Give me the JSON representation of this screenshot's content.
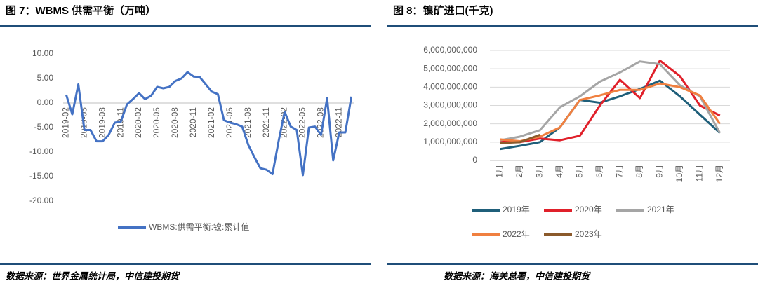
{
  "chart_data": [
    {
      "type": "line",
      "title": "图 7：WBMS 供需平衡（万吨）",
      "source": "数据来源：世界金属统计局，中信建投期货",
      "categories": [
        "2019-02",
        null,
        null,
        "2019-05",
        null,
        null,
        "2019-08",
        null,
        null,
        "2019-11",
        null,
        null,
        "2020-02",
        null,
        null,
        "2020-05",
        null,
        null,
        "2020-08",
        null,
        null,
        "2020-11",
        null,
        null,
        "2021-02",
        null,
        null,
        "2021-05",
        null,
        null,
        "2021-08",
        null,
        null,
        "2021-11",
        null,
        null,
        "2022-02",
        null,
        null,
        "2022-05",
        null,
        null,
        "2022-08",
        null,
        null,
        "2022-11",
        null,
        null
      ],
      "series": [
        {
          "name": "WBMS:供需平衡:镍:累计值",
          "color": "#4472c4",
          "values": [
            1.7,
            -2.3,
            3.8,
            -5.5,
            -5.5,
            -7.8,
            -7.8,
            -6.5,
            -4.0,
            -3.8,
            -0.3,
            0.8,
            2.0,
            0.8,
            1.5,
            3.3,
            3.0,
            3.3,
            4.5,
            5.0,
            6.3,
            5.4,
            5.3,
            3.8,
            2.3,
            1.8,
            -3.5,
            -4.0,
            -4.3,
            -4.8,
            -8.5,
            -11.0,
            -13.3,
            -13.6,
            -14.5,
            -7.8,
            -1.8,
            -4.8,
            -5.5,
            -14.7,
            -5.0,
            -4.8,
            -6.5,
            1.0,
            -11.7,
            -6.0,
            -6.0,
            1.3
          ]
        }
      ],
      "ylim": [
        -20,
        10
      ],
      "yticks": [
        {
          "value": 10,
          "label": "10.00"
        },
        {
          "value": 5,
          "label": "5.00"
        },
        {
          "value": 0,
          "label": "0.00"
        },
        {
          "value": -5,
          "label": "-5.00"
        },
        {
          "value": -10,
          "label": "-10.00"
        },
        {
          "value": -15,
          "label": "-15.00"
        },
        {
          "value": -20,
          "label": "-20.00"
        }
      ],
      "grid": false,
      "legend": "bottom"
    },
    {
      "type": "line",
      "title": "图 8：镍矿进口(千克)",
      "source": "数据来源：海关总署，中信建投期货",
      "categories": [
        "1月",
        "2月",
        "3月",
        "4月",
        "5月",
        "6月",
        "7月",
        "8月",
        "9月",
        "10月",
        "11月",
        "12月"
      ],
      "series": [
        {
          "name": "2019年",
          "color": "#1f5f7a",
          "values": [
            620000000,
            800000000,
            1000000000,
            1800000000,
            3300000000,
            3150000000,
            3500000000,
            3900000000,
            4350000000,
            3500000000,
            2500000000,
            1500000000
          ]
        },
        {
          "name": "2020年",
          "color": "#e0202a",
          "values": [
            1050000000,
            1000000000,
            1200000000,
            1100000000,
            1350000000,
            3000000000,
            4400000000,
            3400000000,
            5450000000,
            4600000000,
            3000000000,
            2450000000
          ]
        },
        {
          "name": "2021年",
          "color": "#a5a5a5",
          "values": [
            1100000000,
            1300000000,
            1650000000,
            2900000000,
            3500000000,
            4300000000,
            4800000000,
            5400000000,
            5250000000,
            4100000000,
            3500000000,
            1500000000
          ]
        },
        {
          "name": "2022年",
          "color": "#f08040",
          "values": [
            1150000000,
            1050000000,
            1300000000,
            1800000000,
            3300000000,
            3550000000,
            3850000000,
            3850000000,
            4200000000,
            4000000000,
            3550000000,
            2000000000
          ]
        },
        {
          "name": "2023年",
          "color": "#8b5a2b",
          "values": [
            950000000,
            1000000000,
            1400000000,
            null,
            null,
            null,
            null,
            null,
            null,
            null,
            null,
            null
          ]
        }
      ],
      "ylim": [
        0,
        6000000000
      ],
      "yticks": [
        0,
        {
          "value": 1000000000,
          "label": "1,000,000,000"
        },
        {
          "value": 2000000000,
          "label": "2,000,000,000"
        },
        {
          "value": 3000000000,
          "label": "3,000,000,000"
        },
        {
          "value": 4000000000,
          "label": "4,000,000,000"
        },
        {
          "value": 5000000000,
          "label": "5,000,000,000"
        },
        {
          "value": 6000000000,
          "label": "6,000,000,000"
        }
      ],
      "grid": true,
      "legend": "bottom"
    }
  ]
}
